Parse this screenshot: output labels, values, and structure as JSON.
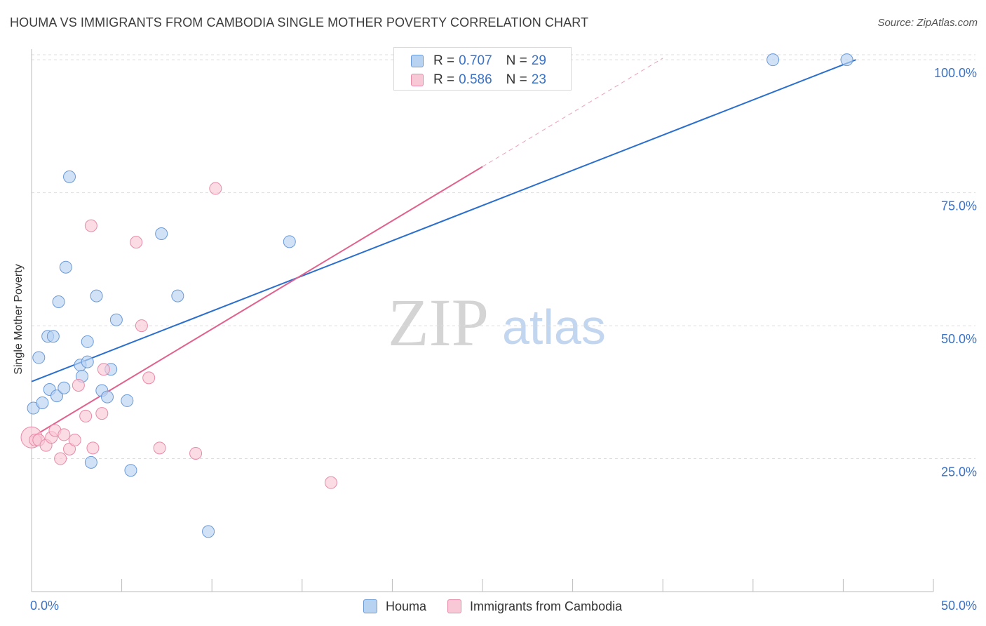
{
  "title": "HOUMA VS IMMIGRANTS FROM CAMBODIA SINGLE MOTHER POVERTY CORRELATION CHART",
  "source": "Source: ZipAtlas.com",
  "watermark": {
    "zip": "ZIP",
    "atlas": "atlas"
  },
  "legend_top": {
    "rows": [
      {
        "r_label": "R =",
        "r_value": "0.707",
        "n_label": "N =",
        "n_value": "29"
      },
      {
        "r_label": "R =",
        "r_value": "0.586",
        "n_label": "N =",
        "n_value": "23"
      }
    ]
  },
  "legend_bottom": {
    "items": [
      "Houma",
      "Immigrants from Cambodia"
    ]
  },
  "colors": {
    "houma_fill": "#b8d2f2",
    "houma_stroke": "#6a9ad8",
    "houma_line": "#2b6fcc",
    "cambodia_fill": "#f9c8d6",
    "cambodia_stroke": "#e88aa8",
    "cambodia_line": "#e0628e",
    "tick_text": "#3a72c6",
    "grid": "#dddddd"
  },
  "chart_data": {
    "type": "scatter",
    "title": "HOUMA VS IMMIGRANTS FROM CAMBODIA SINGLE MOTHER POVERTY CORRELATION CHART",
    "xlabel": "",
    "ylabel": "Single Mother Poverty",
    "xlim": [
      0,
      50
    ],
    "ylim": [
      0,
      102
    ],
    "x_tick_labels": [
      "0.0%",
      "50.0%"
    ],
    "y_ticks": [
      25,
      50,
      75,
      100
    ],
    "y_tick_labels": [
      "25.0%",
      "50.0%",
      "75.0%",
      "100.0%"
    ],
    "grid": true,
    "legend_position": "top-center",
    "series": [
      {
        "name": "Houma",
        "points": [
          [
            0.1,
            34.5
          ],
          [
            0.4,
            44.0
          ],
          [
            0.6,
            35.5
          ],
          [
            0.9,
            48.0
          ],
          [
            1.0,
            38.0
          ],
          [
            1.2,
            48.0
          ],
          [
            1.4,
            36.8
          ],
          [
            1.5,
            54.5
          ],
          [
            1.8,
            38.3
          ],
          [
            1.9,
            61.0
          ],
          [
            2.1,
            78.0
          ],
          [
            2.7,
            42.6
          ],
          [
            2.8,
            40.5
          ],
          [
            3.1,
            43.2
          ],
          [
            3.1,
            47.0
          ],
          [
            3.3,
            24.3
          ],
          [
            3.6,
            55.6
          ],
          [
            3.9,
            37.8
          ],
          [
            4.2,
            36.6
          ],
          [
            4.4,
            41.8
          ],
          [
            4.7,
            51.1
          ],
          [
            5.3,
            35.9
          ],
          [
            5.5,
            22.8
          ],
          [
            7.2,
            67.3
          ],
          [
            8.1,
            55.6
          ],
          [
            9.8,
            11.3
          ],
          [
            14.3,
            65.8
          ],
          [
            41.1,
            100.0
          ],
          [
            45.2,
            100.0
          ]
        ],
        "trend": {
          "x": [
            0,
            45.7
          ],
          "y": [
            39.5,
            100.0
          ]
        }
      },
      {
        "name": "Immigrants from Cambodia",
        "points": [
          [
            0.0,
            29.0
          ],
          [
            0.2,
            28.5
          ],
          [
            0.4,
            28.5
          ],
          [
            0.8,
            27.5
          ],
          [
            1.1,
            29.0
          ],
          [
            1.3,
            30.3
          ],
          [
            1.6,
            25.0
          ],
          [
            1.8,
            29.5
          ],
          [
            2.1,
            26.8
          ],
          [
            2.4,
            28.5
          ],
          [
            2.6,
            38.8
          ],
          [
            3.0,
            33.0
          ],
          [
            3.4,
            27.0
          ],
          [
            3.9,
            33.5
          ],
          [
            4.0,
            41.8
          ],
          [
            3.3,
            68.8
          ],
          [
            5.8,
            65.7
          ],
          [
            6.1,
            50.0
          ],
          [
            6.5,
            40.2
          ],
          [
            7.1,
            27.0
          ],
          [
            9.1,
            26.0
          ],
          [
            10.2,
            75.8
          ],
          [
            16.6,
            20.5
          ]
        ],
        "trend": {
          "x": [
            0,
            25.0
          ],
          "y": [
            29.0,
            79.9
          ]
        },
        "trend_extension": {
          "x": [
            25.0,
            35.0
          ],
          "y": [
            79.9,
            100.3
          ]
        }
      }
    ]
  }
}
